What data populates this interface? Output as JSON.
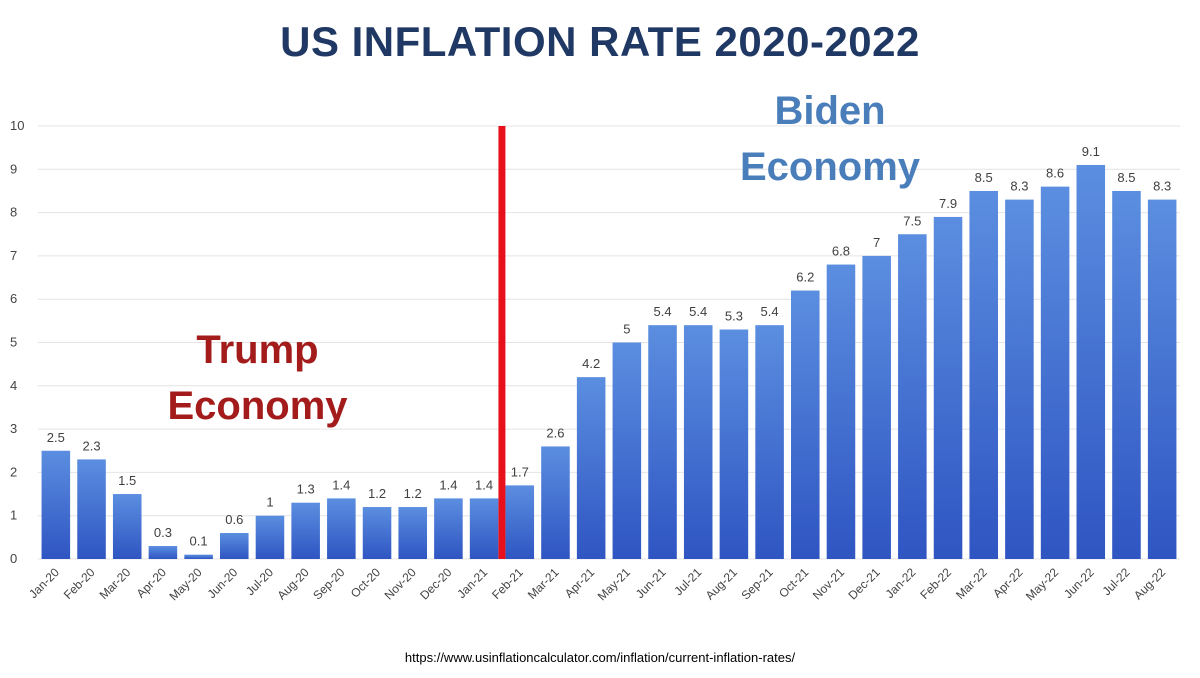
{
  "chart_data": {
    "type": "bar",
    "title": "US INFLATION RATE 2020-2022",
    "xlabel": "",
    "ylabel": "",
    "ylim": [
      0,
      10
    ],
    "yticks": [
      0,
      1,
      2,
      3,
      4,
      5,
      6,
      7,
      8,
      9,
      10
    ],
    "grid": true,
    "categories": [
      "Jan-20",
      "Feb-20",
      "Mar-20",
      "Apr-20",
      "May-20",
      "Jun-20",
      "Jul-20",
      "Aug-20",
      "Sep-20",
      "Oct-20",
      "Nov-20",
      "Dec-20",
      "Jan-21",
      "Feb-21",
      "Mar-21",
      "Apr-21",
      "May-21",
      "Jun-21",
      "Jul-21",
      "Aug-21",
      "Sep-21",
      "Oct-21",
      "Nov-21",
      "Dec-21",
      "Jan-22",
      "Feb-22",
      "Mar-22",
      "Apr-22",
      "May-22",
      "Jun-22",
      "Jul-22",
      "Aug-22"
    ],
    "values": [
      2.5,
      2.3,
      1.5,
      0.3,
      0.1,
      0.6,
      1,
      1.3,
      1.4,
      1.2,
      1.2,
      1.4,
      1.4,
      1.7,
      2.6,
      4.2,
      5,
      5.4,
      5.4,
      5.3,
      5.4,
      6.2,
      6.8,
      7,
      7.5,
      7.9,
      8.5,
      8.3,
      8.6,
      9.1,
      8.5,
      8.3
    ],
    "data_labels": [
      "2.5",
      "2.3",
      "1.5",
      "0.3",
      "0.1",
      "0.6",
      "1",
      "1.3",
      "1.4",
      "1.2",
      "1.2",
      "1.4",
      "1.4",
      "1.7",
      "2.6",
      "4.2",
      "5",
      "5.4",
      "5.4",
      "5.3",
      "5.4",
      "6.2",
      "6.8",
      "7",
      "7.5",
      "7.9",
      "8.5",
      "8.3",
      "8.6",
      "9.1",
      "8.5",
      "8.3"
    ],
    "divider_after_category": "Jan-21",
    "annotations": [
      {
        "id": "trump",
        "line1": "Trump",
        "line2": "Economy"
      },
      {
        "id": "biden",
        "line1": "Biden",
        "line2": "Economy"
      }
    ],
    "source": "https://www.usinflationcalculator.com/inflation/current-inflation-rates/"
  },
  "colors": {
    "title": "#1f3864",
    "bar_top": "#5b8ee0",
    "bar_bottom": "#2f55c2",
    "divider": "#e8101a",
    "trump": "#a31b1b",
    "biden": "#4a7ebb",
    "grid": "#e4e4e4"
  }
}
